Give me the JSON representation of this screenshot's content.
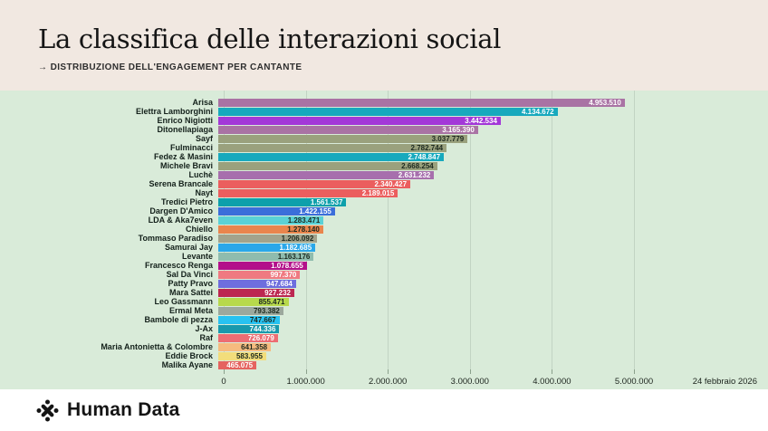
{
  "header": {
    "title": "La classifica delle interazioni social",
    "subtitle": "→ DISTRIBUZIONE DELL'ENGAGEMENT PER CANTANTE"
  },
  "date_label": "24 febbraio 2026",
  "footer": {
    "brand": "Human Data"
  },
  "colors": {
    "header_bg": "#f1e8e1",
    "chart_bg": "#d9ebd9",
    "grid_line": "#c2d4c3",
    "dark_text": "#13201a",
    "light_value_text": "#ffffff",
    "dark_value_text": "#1d2a20"
  },
  "chart_data": {
    "type": "bar",
    "orientation": "horizontal",
    "title": "La classifica delle interazioni social",
    "subtitle": "→ DISTRIBUZIONE DELL'ENGAGEMENT PER CANTANTE",
    "xlabel": "",
    "ylabel": "",
    "xlim": [
      0,
      5000000
    ],
    "grid": true,
    "x_tick_values": [
      0,
      1000000,
      2000000,
      3000000,
      4000000,
      5000000
    ],
    "x_tick_labels": [
      "0",
      "1.000.000",
      "2.000.000",
      "3.000.000",
      "4.000.000",
      "5.000.000"
    ],
    "categories": [
      "Arisa",
      "Elettra Lamborghini",
      "Enrico Nigiotti",
      "Ditonellapiaga",
      "Sayf",
      "Fulminacci",
      "Fedez & Masini",
      "Michele Bravi",
      "Luchè",
      "Serena Brancale",
      "Nayt",
      "Tredici Pietro",
      "Dargen D'Amico",
      "LDA & Aka7even",
      "Chiello",
      "Tommaso Paradiso",
      "Samurai Jay",
      "Levante",
      "Francesco Renga",
      "Sal Da Vinci",
      "Patty Pravo",
      "Mara Sattei",
      "Leo Gassmann",
      "Ermal Meta",
      "Bambole di pezza",
      "J-Ax",
      "Raf",
      "Maria Antonietta & Colombre",
      "Eddie Brock",
      "Malika Ayane"
    ],
    "values": [
      4953510,
      4134672,
      3442534,
      3165390,
      3037779,
      2782744,
      2748847,
      2668254,
      2631232,
      2340427,
      2189015,
      1561537,
      1422155,
      1283471,
      1278140,
      1206092,
      1182685,
      1163176,
      1078655,
      997370,
      947684,
      927232,
      855471,
      793382,
      747667,
      744336,
      726079,
      641358,
      583955,
      465075
    ],
    "value_labels": [
      "4.953.510",
      "4.134.672",
      "3.442.534",
      "3.165.390",
      "3.037.779",
      "2.782.744",
      "2.748.847",
      "2.668.254",
      "2.631.232",
      "2.340.427",
      "2.189.015",
      "1.561.537",
      "1.422.155",
      "1.283.471",
      "1.278.140",
      "1.206.092",
      "1.182.685",
      "1.163.176",
      "1.078.655",
      "997.370",
      "947.684",
      "927.232",
      "855.471",
      "793.382",
      "747.667",
      "744.336",
      "726.079",
      "641.358",
      "583.955",
      "465.075"
    ],
    "bar_colors": [
      "#a973a4",
      "#17a9bd",
      "#a338d8",
      "#a973a4",
      "#9aa17d",
      "#9aa17d",
      "#17a9bd",
      "#9aa17d",
      "#a76fad",
      "#eb5e5e",
      "#eb5e5e",
      "#0da0ab",
      "#3b6eda",
      "#5ad1d6",
      "#e9854d",
      "#a2a38c",
      "#2aa7e9",
      "#8fbcae",
      "#b3108a",
      "#ef7a81",
      "#6e6ede",
      "#bc2751",
      "#b7d94c",
      "#9ca89d",
      "#28c2f1",
      "#1899ad",
      "#ed6d73",
      "#f6bb7f",
      "#f2dd7b",
      "#e5635f"
    ],
    "value_text_colors": [
      "#ffffff",
      "#ffffff",
      "#ffffff",
      "#ffffff",
      "#1d2a20",
      "#1d2a20",
      "#ffffff",
      "#1d2a20",
      "#ffffff",
      "#ffffff",
      "#ffffff",
      "#ffffff",
      "#ffffff",
      "#1d2a20",
      "#1d2a20",
      "#1d2a20",
      "#ffffff",
      "#1d2a20",
      "#ffffff",
      "#ffffff",
      "#ffffff",
      "#ffffff",
      "#1d2a20",
      "#1d2a20",
      "#1d2a20",
      "#ffffff",
      "#ffffff",
      "#1d2a20",
      "#1d2a20",
      "#ffffff"
    ],
    "legend": null
  }
}
